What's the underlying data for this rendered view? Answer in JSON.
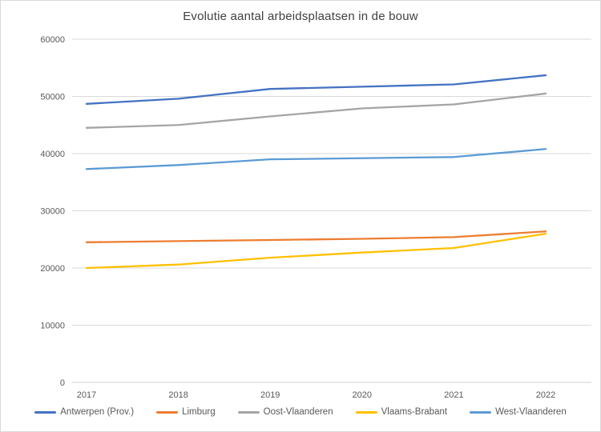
{
  "window": {
    "background_color": "#FFFFFF",
    "border_color": "#D9D9D9"
  },
  "chart_data": {
    "type": "line",
    "title": "Evolutie aantal arbeidsplaatsen in de bouw",
    "title_color": "#404040",
    "categories": [
      "2017",
      "2018",
      "2019",
      "2020",
      "2021",
      "2022"
    ],
    "series": [
      {
        "name": "Antwerpen (Prov.)",
        "color": "#4472C4",
        "values": [
          48700,
          49600,
          51300,
          51700,
          52100,
          53700
        ]
      },
      {
        "name": "Limburg",
        "color": "#ED7D31",
        "values": [
          24500,
          24700,
          24900,
          25100,
          25400,
          26400
        ]
      },
      {
        "name": "Oost-Vlaanderen",
        "color": "#A5A5A5",
        "values": [
          44500,
          45000,
          46500,
          47900,
          48600,
          50500
        ]
      },
      {
        "name": "Vlaams-Brabant",
        "color": "#FFC000",
        "values": [
          20000,
          20600,
          21800,
          22700,
          23500,
          26000
        ]
      },
      {
        "name": "West-Vlaanderen",
        "color": "#5B9BD5",
        "values": [
          37300,
          38000,
          39000,
          39200,
          39400,
          40800
        ]
      }
    ],
    "y_axis": {
      "min": 0,
      "max": 60000,
      "step": 10000,
      "tick_labels": [
        "0",
        "10000",
        "20000",
        "30000",
        "40000",
        "50000",
        "60000"
      ]
    },
    "x_axis": {
      "tick_labels": [
        "2017",
        "2018",
        "2019",
        "2020",
        "2021",
        "2022"
      ]
    },
    "grid": true,
    "grid_color": "#D9D9D9",
    "axis_line_color": "#CFCFCF",
    "axis_text_color": "#595959",
    "legend_position": "bottom"
  }
}
